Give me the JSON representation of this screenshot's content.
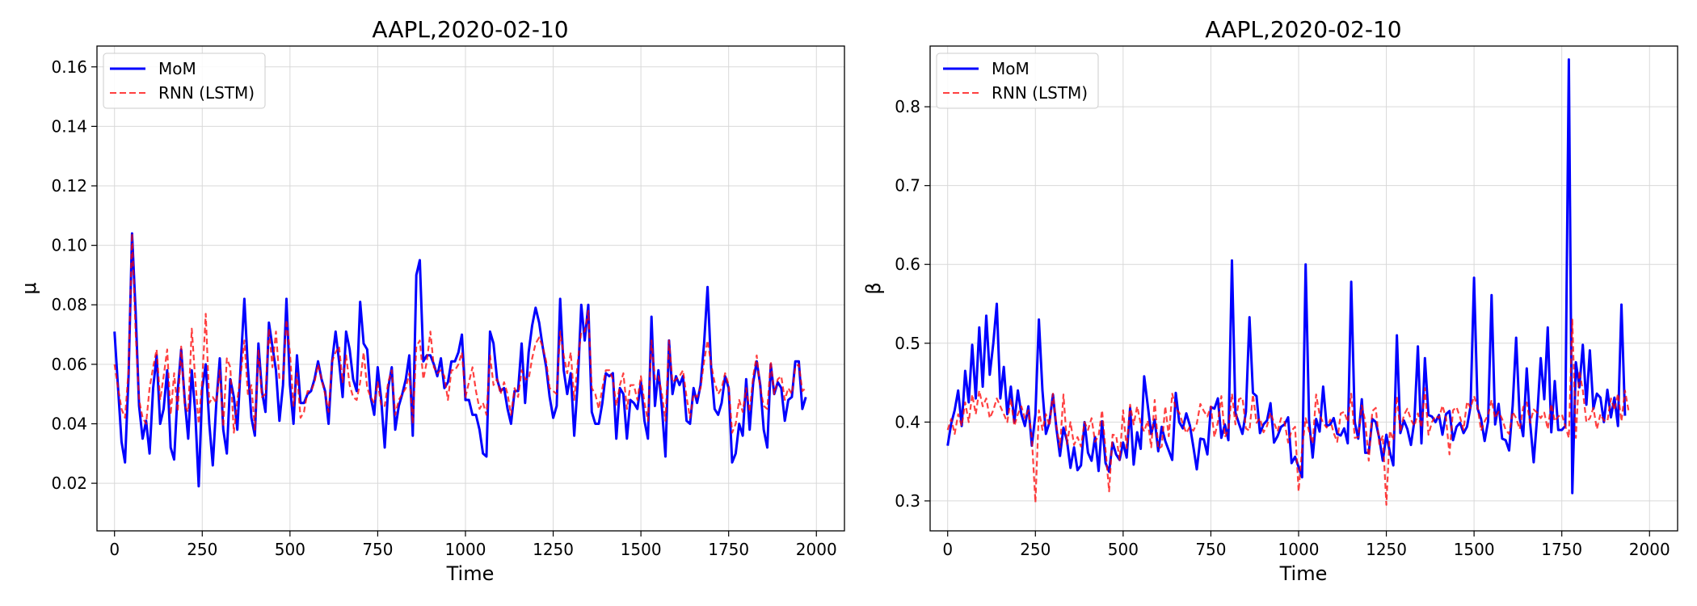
{
  "figure": {
    "background": "#ffffff"
  },
  "chart_data": [
    {
      "type": "line",
      "title": "AAPL,2020-02-10",
      "xlabel": "Time",
      "ylabel": "μ",
      "xlim": [
        -50,
        2080
      ],
      "ylim": [
        0.004,
        0.167
      ],
      "x_ticks": [
        0,
        250,
        500,
        750,
        1000,
        1250,
        1500,
        1750,
        2000
      ],
      "x_tick_labels": [
        "0",
        "250",
        "500",
        "750",
        "1000",
        "1250",
        "1500",
        "1750",
        "2000"
      ],
      "y_ticks": [
        0.02,
        0.04,
        0.06,
        0.08,
        0.1,
        0.12,
        0.14,
        0.16
      ],
      "y_tick_labels": [
        "0.02",
        "0.04",
        "0.06",
        "0.08",
        "0.10",
        "0.12",
        "0.14",
        "0.16"
      ],
      "grid": true,
      "legend_position": "top-left",
      "series": [
        {
          "name": "MoM",
          "color": "#0000ff",
          "style": "solid",
          "x_start": 0,
          "x_step": 10,
          "values": [
            0.071,
            0.052,
            0.034,
            0.027,
            0.056,
            0.104,
            0.078,
            0.046,
            0.035,
            0.041,
            0.03,
            0.052,
            0.063,
            0.04,
            0.045,
            0.058,
            0.032,
            0.028,
            0.051,
            0.065,
            0.048,
            0.035,
            0.058,
            0.044,
            0.019,
            0.052,
            0.06,
            0.04,
            0.026,
            0.047,
            0.062,
            0.038,
            0.03,
            0.055,
            0.049,
            0.038,
            0.061,
            0.082,
            0.059,
            0.042,
            0.036,
            0.067,
            0.051,
            0.044,
            0.074,
            0.066,
            0.058,
            0.041,
            0.053,
            0.082,
            0.053,
            0.04,
            0.063,
            0.047,
            0.047,
            0.05,
            0.051,
            0.055,
            0.061,
            0.055,
            0.051,
            0.04,
            0.061,
            0.071,
            0.061,
            0.049,
            0.071,
            0.065,
            0.055,
            0.051,
            0.081,
            0.067,
            0.065,
            0.049,
            0.043,
            0.059,
            0.048,
            0.032,
            0.052,
            0.059,
            0.038,
            0.046,
            0.05,
            0.055,
            0.063,
            0.036,
            0.09,
            0.095,
            0.061,
            0.063,
            0.063,
            0.06,
            0.056,
            0.062,
            0.052,
            0.054,
            0.061,
            0.061,
            0.064,
            0.07,
            0.048,
            0.048,
            0.043,
            0.043,
            0.038,
            0.03,
            0.029,
            0.071,
            0.067,
            0.055,
            0.051,
            0.052,
            0.045,
            0.04,
            0.051,
            0.051,
            0.067,
            0.047,
            0.064,
            0.073,
            0.079,
            0.074,
            0.066,
            0.059,
            0.049,
            0.042,
            0.046,
            0.082,
            0.058,
            0.05,
            0.057,
            0.036,
            0.054,
            0.08,
            0.068,
            0.08,
            0.044,
            0.04,
            0.04,
            0.047,
            0.057,
            0.056,
            0.057,
            0.035,
            0.052,
            0.05,
            0.035,
            0.048,
            0.047,
            0.045,
            0.054,
            0.041,
            0.035,
            0.076,
            0.046,
            0.058,
            0.045,
            0.029,
            0.068,
            0.05,
            0.056,
            0.053,
            0.056,
            0.041,
            0.04,
            0.052,
            0.047,
            0.053,
            0.067,
            0.086,
            0.059,
            0.045,
            0.043,
            0.047,
            0.056,
            0.052,
            0.027,
            0.03,
            0.04,
            0.036,
            0.055,
            0.038,
            0.054,
            0.061,
            0.053,
            0.038,
            0.032,
            0.06,
            0.05,
            0.054,
            0.052,
            0.041,
            0.048,
            0.049,
            0.061,
            0.061,
            0.045,
            0.049
          ]
        },
        {
          "name": "RNN (LSTM)",
          "color": "#ff0000",
          "style": "dashed",
          "x_start": 0,
          "x_step": 10,
          "values": [
            0.06,
            0.052,
            0.045,
            0.042,
            0.058,
            0.104,
            0.071,
            0.048,
            0.042,
            0.04,
            0.052,
            0.059,
            0.065,
            0.048,
            0.056,
            0.065,
            0.043,
            0.057,
            0.044,
            0.066,
            0.046,
            0.044,
            0.072,
            0.055,
            0.04,
            0.055,
            0.077,
            0.047,
            0.049,
            0.047,
            0.058,
            0.039,
            0.062,
            0.059,
            0.037,
            0.048,
            0.057,
            0.068,
            0.05,
            0.053,
            0.038,
            0.065,
            0.049,
            0.05,
            0.072,
            0.059,
            0.071,
            0.055,
            0.055,
            0.075,
            0.064,
            0.046,
            0.057,
            0.042,
            0.044,
            0.051,
            0.051,
            0.054,
            0.06,
            0.055,
            0.05,
            0.044,
            0.061,
            0.064,
            0.066,
            0.054,
            0.063,
            0.053,
            0.049,
            0.048,
            0.054,
            0.064,
            0.052,
            0.049,
            0.047,
            0.054,
            0.046,
            0.046,
            0.054,
            0.058,
            0.043,
            0.048,
            0.05,
            0.052,
            0.057,
            0.04,
            0.066,
            0.068,
            0.055,
            0.061,
            0.071,
            0.059,
            0.057,
            0.058,
            0.056,
            0.048,
            0.058,
            0.058,
            0.06,
            0.064,
            0.049,
            0.054,
            0.059,
            0.051,
            0.045,
            0.047,
            0.043,
            0.063,
            0.053,
            0.055,
            0.05,
            0.054,
            0.05,
            0.043,
            0.052,
            0.049,
            0.058,
            0.055,
            0.055,
            0.062,
            0.067,
            0.069,
            0.066,
            0.061,
            0.052,
            0.051,
            0.05,
            0.071,
            0.063,
            0.057,
            0.064,
            0.048,
            0.061,
            0.071,
            0.071,
            0.078,
            0.052,
            0.05,
            0.045,
            0.052,
            0.058,
            0.058,
            0.055,
            0.046,
            0.053,
            0.057,
            0.045,
            0.053,
            0.053,
            0.048,
            0.056,
            0.047,
            0.041,
            0.068,
            0.055,
            0.056,
            0.05,
            0.041,
            0.068,
            0.054,
            0.055,
            0.056,
            0.058,
            0.049,
            0.042,
            0.05,
            0.049,
            0.052,
            0.061,
            0.068,
            0.06,
            0.054,
            0.05,
            0.052,
            0.057,
            0.053,
            0.037,
            0.04,
            0.048,
            0.044,
            0.052,
            0.044,
            0.056,
            0.063,
            0.052,
            0.046,
            0.045,
            0.061,
            0.05,
            0.055,
            0.056,
            0.048,
            0.052,
            0.05,
            0.059,
            0.06,
            0.051,
            0.052
          ]
        }
      ]
    },
    {
      "type": "line",
      "title": "AAPL,2020-02-10",
      "xlabel": "Time",
      "ylabel": "β",
      "xlim": [
        -50,
        2080
      ],
      "ylim": [
        0.262,
        0.877
      ],
      "x_ticks": [
        0,
        250,
        500,
        750,
        1000,
        1250,
        1500,
        1750,
        2000
      ],
      "x_tick_labels": [
        "0",
        "250",
        "500",
        "750",
        "1000",
        "1250",
        "1500",
        "1750",
        "2000"
      ],
      "y_ticks": [
        0.3,
        0.4,
        0.5,
        0.6,
        0.7,
        0.8
      ],
      "y_tick_labels": [
        "0.3",
        "0.4",
        "0.5",
        "0.6",
        "0.7",
        "0.8"
      ],
      "grid": true,
      "legend_position": "top-left",
      "series": [
        {
          "name": "MoM",
          "color": "#0000ff",
          "style": "solid",
          "x_start": 0,
          "x_step": 10,
          "values": [
            0.37,
            0.398,
            0.415,
            0.44,
            0.395,
            0.465,
            0.425,
            0.498,
            0.43,
            0.52,
            0.445,
            0.535,
            0.46,
            0.5,
            0.55,
            0.43,
            0.47,
            0.41,
            0.445,
            0.4,
            0.44,
            0.41,
            0.395,
            0.42,
            0.37,
            0.41,
            0.53,
            0.44,
            0.385,
            0.4,
            0.435,
            0.392,
            0.357,
            0.393,
            0.376,
            0.342,
            0.368,
            0.339,
            0.345,
            0.4,
            0.361,
            0.351,
            0.381,
            0.338,
            0.401,
            0.348,
            0.337,
            0.374,
            0.359,
            0.352,
            0.374,
            0.355,
            0.418,
            0.346,
            0.387,
            0.366,
            0.458,
            0.422,
            0.385,
            0.403,
            0.363,
            0.394,
            0.376,
            0.364,
            0.352,
            0.437,
            0.4,
            0.392,
            0.411,
            0.396,
            0.369,
            0.34,
            0.379,
            0.378,
            0.359,
            0.419,
            0.417,
            0.43,
            0.38,
            0.397,
            0.377,
            0.605,
            0.412,
            0.398,
            0.385,
            0.413,
            0.533,
            0.437,
            0.433,
            0.386,
            0.397,
            0.402,
            0.424,
            0.374,
            0.382,
            0.394,
            0.397,
            0.406,
            0.348,
            0.356,
            0.343,
            0.33,
            0.6,
            0.401,
            0.355,
            0.404,
            0.388,
            0.445,
            0.395,
            0.397,
            0.405,
            0.385,
            0.383,
            0.392,
            0.373,
            0.578,
            0.4,
            0.379,
            0.429,
            0.361,
            0.361,
            0.404,
            0.4,
            0.379,
            0.351,
            0.384,
            0.362,
            0.345,
            0.51,
            0.386,
            0.402,
            0.391,
            0.371,
            0.402,
            0.496,
            0.373,
            0.481,
            0.409,
            0.407,
            0.4,
            0.409,
            0.384,
            0.41,
            0.414,
            0.377,
            0.394,
            0.399,
            0.386,
            0.394,
            0.42,
            0.583,
            0.417,
            0.404,
            0.376,
            0.401,
            0.561,
            0.397,
            0.423,
            0.379,
            0.377,
            0.364,
            0.421,
            0.507,
            0.405,
            0.382,
            0.468,
            0.398,
            0.349,
            0.408,
            0.481,
            0.429,
            0.52,
            0.387,
            0.452,
            0.39,
            0.39,
            0.395,
            0.86,
            0.31,
            0.476,
            0.444,
            0.498,
            0.422,
            0.491,
            0.417,
            0.436,
            0.431,
            0.4,
            0.441,
            0.406,
            0.431,
            0.395,
            0.549,
            0.408
          ]
        },
        {
          "name": "RNN (LSTM)",
          "color": "#ff0000",
          "style": "dashed",
          "x_start": 0,
          "x_step": 10,
          "values": [
            0.39,
            0.404,
            0.385,
            0.41,
            0.395,
            0.425,
            0.4,
            0.435,
            0.41,
            0.44,
            0.42,
            0.43,
            0.405,
            0.415,
            0.43,
            0.42,
            0.41,
            0.4,
            0.43,
            0.395,
            0.41,
            0.42,
            0.405,
            0.415,
            0.38,
            0.298,
            0.415,
            0.39,
            0.41,
            0.395,
            0.436,
            0.395,
            0.368,
            0.435,
            0.372,
            0.4,
            0.371,
            0.381,
            0.369,
            0.4,
            0.39,
            0.405,
            0.375,
            0.383,
            0.415,
            0.365,
            0.312,
            0.384,
            0.383,
            0.352,
            0.415,
            0.367,
            0.422,
            0.397,
            0.42,
            0.398,
            0.388,
            0.402,
            0.368,
            0.428,
            0.366,
            0.369,
            0.42,
            0.382,
            0.436,
            0.417,
            0.412,
            0.398,
            0.386,
            0.394,
            0.389,
            0.398,
            0.423,
            0.414,
            0.407,
            0.42,
            0.381,
            0.4,
            0.433,
            0.381,
            0.391,
            0.436,
            0.397,
            0.429,
            0.431,
            0.392,
            0.389,
            0.435,
            0.399,
            0.405,
            0.387,
            0.395,
            0.412,
            0.399,
            0.388,
            0.405,
            0.4,
            0.374,
            0.389,
            0.394,
            0.312,
            0.366,
            0.405,
            0.388,
            0.373,
            0.435,
            0.409,
            0.399,
            0.393,
            0.403,
            0.386,
            0.375,
            0.411,
            0.413,
            0.4,
            0.436,
            0.38,
            0.381,
            0.421,
            0.401,
            0.351,
            0.414,
            0.418,
            0.372,
            0.383,
            0.295,
            0.389,
            0.377,
            0.433,
            0.388,
            0.409,
            0.417,
            0.403,
            0.395,
            0.411,
            0.393,
            0.443,
            0.384,
            0.4,
            0.408,
            0.405,
            0.421,
            0.405,
            0.359,
            0.415,
            0.419,
            0.406,
            0.39,
            0.426,
            0.418,
            0.433,
            0.419,
            0.389,
            0.401,
            0.409,
            0.428,
            0.405,
            0.413,
            0.404,
            0.39,
            0.385,
            0.413,
            0.405,
            0.391,
            0.419,
            0.425,
            0.399,
            0.416,
            0.412,
            0.405,
            0.412,
            0.391,
            0.423,
            0.401,
            0.407,
            0.41,
            0.395,
            0.38,
            0.53,
            0.38,
            0.465,
            0.44,
            0.4,
            0.405,
            0.418,
            0.391,
            0.41,
            0.402,
            0.401,
            0.43,
            0.415,
            0.436,
            0.401,
            0.44,
            0.415
          ]
        }
      ]
    }
  ]
}
